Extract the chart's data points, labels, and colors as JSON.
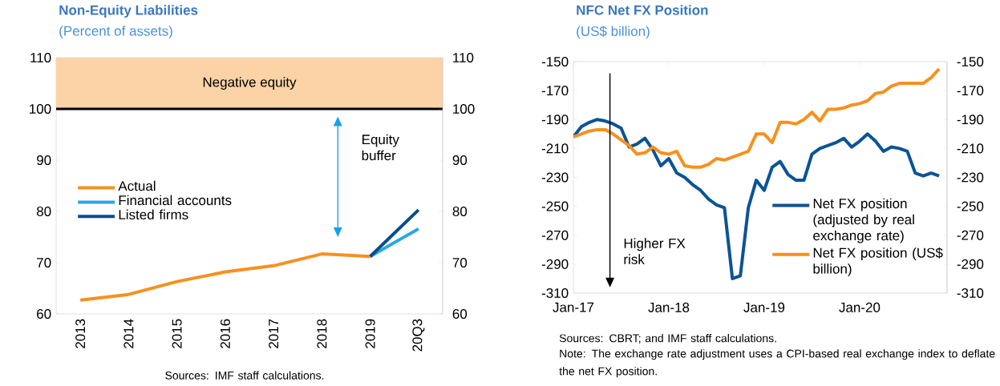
{
  "chart_data": [
    {
      "type": "line",
      "title": "Non-Equity Liabilities",
      "subtitle": "(Percent of assets)",
      "categories": [
        "2013",
        "2014",
        "2015",
        "2016",
        "2017",
        "2018",
        "2019",
        "20Q3"
      ],
      "series": [
        {
          "name": "Actual",
          "color": "#f7901e",
          "values": [
            62.7,
            63.8,
            66.3,
            68.2,
            69.4,
            71.7,
            71.2,
            null
          ]
        },
        {
          "name": "Financial accounts",
          "color": "#29a8e0",
          "values": [
            null,
            null,
            null,
            null,
            null,
            null,
            71.2,
            76.6
          ]
        },
        {
          "name": "Listed firms",
          "color": "#0a4c8c",
          "values": [
            null,
            null,
            null,
            null,
            null,
            null,
            71.2,
            80.3
          ]
        }
      ],
      "ylim": [
        60,
        110
      ],
      "yticks": [
        60,
        70,
        80,
        90,
        100,
        110
      ],
      "y2lim": [
        60,
        110
      ],
      "y2ticks": [
        60,
        70,
        80,
        90,
        100,
        110
      ],
      "ref_lines": [
        {
          "axis": "y",
          "value": 100,
          "color": "#000000"
        }
      ],
      "bands": [
        {
          "axis": "y",
          "from": 100,
          "to": 110,
          "label": "Negative equity",
          "color": "#fbd3a6"
        }
      ],
      "legend": "left",
      "annotations": [
        "Equity buffer",
        "Sources: IMF staff calculations."
      ]
    },
    {
      "type": "line",
      "title": "NFC Net FX Position",
      "subtitle": "(US$ billion)",
      "x": [
        "2017-01",
        "2017-02",
        "2017-03",
        "2017-04",
        "2017-05",
        "2017-06",
        "2017-07",
        "2017-08",
        "2017-09",
        "2017-10",
        "2017-11",
        "2017-12",
        "2018-01",
        "2018-02",
        "2018-03",
        "2018-04",
        "2018-05",
        "2018-06",
        "2018-07",
        "2018-08",
        "2018-09",
        "2018-10",
        "2018-11",
        "2018-12",
        "2019-01",
        "2019-02",
        "2019-03",
        "2019-04",
        "2019-05",
        "2019-06",
        "2019-07",
        "2019-08",
        "2019-09",
        "2019-10",
        "2019-11",
        "2019-12",
        "2020-01",
        "2020-02",
        "2020-03",
        "2020-04",
        "2020-05",
        "2020-06",
        "2020-07",
        "2020-08",
        "2020-09",
        "2020-10",
        "2020-11"
      ],
      "series": [
        {
          "name": "Net FX position (adjusted by real exchange rate)",
          "color": "#0c5396",
          "values": [
            -202,
            -195,
            -192,
            -190,
            -191,
            -193,
            -196,
            -209,
            -207,
            -203,
            -211,
            -222,
            -217,
            -227,
            -230,
            -235,
            -239,
            -245,
            -249,
            -251,
            -300,
            -298,
            -251,
            -232,
            -239,
            -223,
            -219,
            -228,
            -232,
            -232,
            -214,
            -210,
            -208,
            -206,
            -203,
            -209,
            -205,
            -200,
            -205,
            -212,
            -209,
            -210,
            -212,
            -227,
            -229,
            -227,
            -229
          ]
        },
        {
          "name": "Net FX position (US$ billion)",
          "color": "#f7901e",
          "values": [
            -202,
            -200,
            -198,
            -197,
            -197,
            -200,
            -204,
            -208,
            -214,
            -213,
            -209,
            -213,
            -214,
            -212,
            -222,
            -223,
            -223,
            -221,
            -217,
            -218,
            -216,
            -214,
            -212,
            -200,
            -200,
            -206,
            -192,
            -192,
            -193,
            -190,
            -185,
            -191,
            -183,
            -183,
            -182,
            -180,
            -179,
            -177,
            -172,
            -171,
            -167,
            -165,
            -165,
            -165,
            -165,
            -161,
            -155
          ]
        }
      ],
      "xlim": [
        "2017-01",
        "2020-12"
      ],
      "xticks": [
        {
          "value": "2017-01",
          "label": "Jan-17"
        },
        {
          "value": "2018-01",
          "label": "Jan-18"
        },
        {
          "value": "2019-01",
          "label": "Jan-19"
        },
        {
          "value": "2020-01",
          "label": "Jan-20"
        }
      ],
      "ylim": [
        -310,
        -150
      ],
      "yticks": [
        -310,
        -290,
        -270,
        -250,
        -230,
        -210,
        -190,
        -170,
        -150
      ],
      "y2lim": [
        -310,
        -150
      ],
      "y2ticks": [
        -310,
        -290,
        -270,
        -250,
        -230,
        -210,
        -190,
        -170,
        -150
      ],
      "legend": "bottom right",
      "annotations": [
        "Higher FX risk",
        "Sources: CBRT; and IMF staff calculations.",
        "Note: The exchange rate adjustment uses a CPI-based real exchange index to deflate the net FX position."
      ]
    }
  ]
}
